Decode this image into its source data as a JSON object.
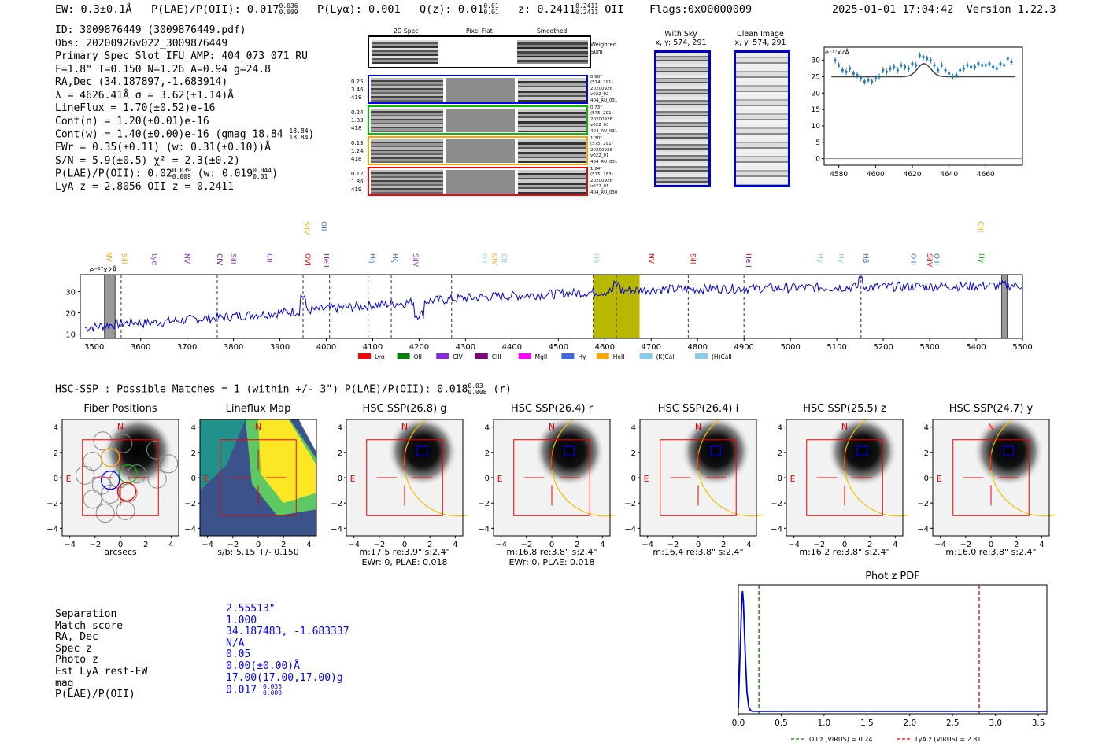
{
  "header": {
    "ew": "EW: 0.3±0.1Å",
    "plae_label": "P(LAE)/P(OII): 0.017",
    "plae_sup": "0.036",
    "plae_sub": "0.009",
    "plya": "P(Lyα): 0.001",
    "qz_label": "Q(z): 0.01",
    "qz_sup": "0.01",
    "qz_sub": "0.01",
    "z_label": "z: 0.2411",
    "z_sup": "0.2411",
    "z_sub": "0.2411",
    "z_line": "OII",
    "flags": "Flags:0x00000009",
    "timestamp": "2025-01-01 17:04:42",
    "version": "Version 1.22.3"
  },
  "info": {
    "id": "ID: 3009876449 (3009876449.pdf)",
    "obs": "Obs: 20200926v022_3009876449",
    "primary": "Primary Spec_Slot_IFU_AMP: 404_073_071_RU",
    "params": "F=1.8\"  T=0.150  N=1.26  A=0.94  g=24.8",
    "radec": "RA,Dec (34.187897,-1.683914)",
    "lambda": "λ = 4626.41Å  σ = 3.62(±1.14)Å",
    "lineflux": "LineFlux = 1.70(±0.52)e-16",
    "contn": "Cont(n) = 1.20(±0.01)e-16",
    "contw": "Cont(w) = 1.40(±0.00)e-16 (gmag 18.84",
    "contw_sup": "18.84",
    "contw_sub": "18.84",
    "ewr": "EWr = 0.35(±0.11) (w: 0.31(±0.10))Å",
    "sn": "S/N = 5.9(±0.5)  χ² = 2.3(±0.2)",
    "plae": "P(LAE)/P(OII): 0.02",
    "plae_sup": "0.039",
    "plae_sub": "0.009",
    "plae_w": "(w: 0.019",
    "plae_w_sup": "0.044",
    "plae_w_sub": "0.01",
    "lya_z": "LyA z = 2.8056   OII z = 0.2411"
  },
  "cutouts": {
    "col_2d": "2D Spec",
    "col_flat": "Pixel Flat",
    "col_smooth": "Smoothed",
    "weighted": "Weighted Sum",
    "rows": [
      {
        "left": [
          "0.25",
          "3.46",
          "418"
        ],
        "right": [
          "0.68\"",
          "(574, 291)",
          "20200926",
          "v022_02",
          "404_RU_031"
        ],
        "color": "#0000ff"
      },
      {
        "left": [
          "0.24",
          "1.83",
          "418"
        ],
        "right": [
          "0.73\"",
          "(575, 291)",
          "20200926",
          "v022_03",
          "404_RU_031"
        ],
        "color": "#00c000"
      },
      {
        "left": [
          "0.13",
          "1.24",
          "418"
        ],
        "right": [
          "1.30\"",
          "(575, 291)",
          "20200926",
          "v022_01",
          "404_RU_031"
        ],
        "color": "#ffa500"
      },
      {
        "left": [
          "0.12",
          "1.86",
          "419"
        ],
        "right": [
          "1.24\"",
          "(575, 283)",
          "20200926",
          "v022_01",
          "404_RU_030"
        ],
        "color": "#ff0000"
      }
    ],
    "with_sky": "With Sky",
    "with_sky_xy": "x, y: 574, 291",
    "clean": "Clean Image",
    "clean_xy": "x, y: 574, 291"
  },
  "zoom_chart": {
    "type": "line",
    "unit_label": "e⁻¹⁷x2Å",
    "xlim": [
      4572,
      4680
    ],
    "ylim": [
      -2,
      34
    ],
    "xticks": [
      "4580",
      "4600",
      "4620",
      "4640",
      "4660"
    ],
    "yticks": [
      "0",
      "5",
      "10",
      "15",
      "20",
      "25",
      "30"
    ],
    "x": [
      4578,
      4580,
      4582,
      4584,
      4586,
      4588,
      4590,
      4592,
      4594,
      4596,
      4598,
      4600,
      4602,
      4604,
      4606,
      4608,
      4610,
      4612,
      4614,
      4616,
      4618,
      4620,
      4622,
      4624,
      4626,
      4628,
      4630,
      4632,
      4634,
      4636,
      4638,
      4640,
      4642,
      4644,
      4646,
      4648,
      4650,
      4652,
      4654,
      4656,
      4658,
      4660,
      4662,
      4664,
      4666,
      4668,
      4670,
      4672,
      4674
    ],
    "y": [
      30,
      28.5,
      27,
      26.5,
      27.5,
      26,
      25.5,
      24.5,
      23.5,
      24,
      23.5,
      24.5,
      25,
      27,
      26.5,
      27.5,
      28,
      27,
      28.5,
      28,
      27.5,
      29,
      28.5,
      31.5,
      31,
      30.5,
      30,
      28.5,
      27,
      28.5,
      27,
      26,
      25,
      25.5,
      27,
      27.5,
      28.5,
      28,
      28,
      29,
      28.5,
      28.5,
      29,
      28,
      27.5,
      29,
      28.5,
      30.5,
      29.5
    ],
    "model_baseline": 25,
    "model_peak": 29,
    "model_center": 4626.4
  },
  "spectrum": {
    "unit_label": "e⁻¹⁷x2Å",
    "xlim": [
      3470,
      5500
    ],
    "ylim": [
      8,
      38
    ],
    "xticks": [
      "3500",
      "3600",
      "3700",
      "3800",
      "3900",
      "4000",
      "4100",
      "4200",
      "4300",
      "4400",
      "4500",
      "4600",
      "4700",
      "4800",
      "4900",
      "5000",
      "5100",
      "5200",
      "5300",
      "5400",
      "5500"
    ],
    "yticks": [
      "10",
      "20",
      "30"
    ],
    "highlight_band": [
      4575,
      4675
    ],
    "lines": [
      {
        "name": "NV",
        "x": 3522,
        "color": "#ffa500",
        "row": 2
      },
      {
        "name": "SiII",
        "x": 3555,
        "color": "#ffa500",
        "row": 1
      },
      {
        "name": "Lyα",
        "x": 3620,
        "color": "#8a2be2",
        "row": 1
      },
      {
        "name": "NV",
        "x": 3690,
        "color": "#8a2be2",
        "row": 1
      },
      {
        "name": "CIV",
        "x": 3760,
        "color": "#8b008b",
        "row": 1
      },
      {
        "name": "SiII",
        "x": 3790,
        "color": "#8a2be2",
        "row": 1
      },
      {
        "name": "CII",
        "x": 3868,
        "color": "#8a2be2",
        "row": 1
      },
      {
        "name": "OVI",
        "x": 3950,
        "color": "#ff0000",
        "row": 1
      },
      {
        "name": "SiIV",
        "x": 3948,
        "color": "#ffa500",
        "row": 3
      },
      {
        "name": "OII",
        "x": 3985,
        "color": "#4169e1",
        "row": 3
      },
      {
        "name": "HeII",
        "x": 3990,
        "color": "#8b008b",
        "row": 1
      },
      {
        "name": "Hη",
        "x": 4090,
        "color": "#4169e1",
        "row": 1
      },
      {
        "name": "Hζ",
        "x": 4138,
        "color": "#4169e1",
        "row": 1
      },
      {
        "name": "SiIV",
        "x": 4182,
        "color": "#8a2be2",
        "row": 1
      },
      {
        "name": "OII",
        "x": 4331,
        "color": "#87ceeb",
        "row": 1
      },
      {
        "name": "CIV",
        "x": 4353,
        "color": "#ffa500",
        "row": 1
      },
      {
        "name": "CII",
        "x": 4373,
        "color": "#87ceeb",
        "row": 1
      },
      {
        "name": "Hδ",
        "x": 4572,
        "color": "#87ceeb",
        "row": 1
      },
      {
        "name": "NV",
        "x": 4690,
        "color": "#ff0000",
        "row": 1
      },
      {
        "name": "SiII",
        "x": 4780,
        "color": "#ff0000",
        "row": 1
      },
      {
        "name": "HeII",
        "x": 4900,
        "color": "#8b008b",
        "row": 1
      },
      {
        "name": "Hγ",
        "x": 5055,
        "color": "#87ceeb",
        "row": 1
      },
      {
        "name": "Hγ",
        "x": 5100,
        "color": "#87ceeb",
        "row": 1
      },
      {
        "name": "Hβ",
        "x": 5152,
        "color": "#4169e1",
        "row": 1
      },
      {
        "name": "OIII",
        "x": 5255,
        "color": "#4169e1",
        "row": 1
      },
      {
        "name": "SiIV",
        "x": 5290,
        "color": "#ff0000",
        "row": 1
      },
      {
        "name": "OIII",
        "x": 5305,
        "color": "#4169e1",
        "row": 1
      },
      {
        "name": "Hγ",
        "x": 5402,
        "color": "#00c000",
        "row": 1
      },
      {
        "name": "CIII",
        "x": 5400,
        "color": "#ffa500",
        "row": 3
      }
    ],
    "dashed_lines": [
      3558,
      3765,
      3950,
      4007,
      4090,
      4140,
      4270,
      4575,
      4625,
      4780,
      4900,
      5152
    ],
    "legend": [
      {
        "label": "Lyα",
        "color": "#ff0000"
      },
      {
        "label": "OII",
        "color": "#008000"
      },
      {
        "label": "CIV",
        "color": "#8a2be2"
      },
      {
        "label": "CIII",
        "color": "#800080"
      },
      {
        "label": "MgII",
        "color": "#ff00ff"
      },
      {
        "label": "Hγ",
        "color": "#4169e1"
      },
      {
        "label": "HeII",
        "color": "#ffa500"
      },
      {
        "label": "(K)CaII",
        "color": "#87ceeb"
      },
      {
        "label": "(H)CaII",
        "color": "#87ceeb"
      }
    ]
  },
  "hsc": {
    "summary": "HSC-SSP : Possible Matches = 1 (within +/- 3\")  P(LAE)/P(OII): 0.018",
    "summary_sup": "0.03",
    "summary_sub": "0.008",
    "summary_band": "(r)",
    "panels": [
      {
        "title": "Fiber Positions",
        "caption1": "arcsecs",
        "caption2": ""
      },
      {
        "title": "Lineflux Map",
        "caption1": "s/b: 5.15 +/- 0.150",
        "caption2": ""
      },
      {
        "title": "HSC SSP(26.8) g",
        "caption1": "m:17.5  re:3.9\"  s:2.4\"",
        "caption2": "EWr: 0, PLAE: 0.018"
      },
      {
        "title": "HSC SSP(26.4) r",
        "caption1": "m:16.8  re:3.8\"  s:2.4\"",
        "caption2": "EWr: 0, PLAE: 0.018"
      },
      {
        "title": "HSC SSP(26.4) i",
        "caption1": "m:16.4  re:3.8\"  s:2.4\"",
        "caption2": ""
      },
      {
        "title": "HSC SSP(25.5) z",
        "caption1": "m:16.2  re:3.8\"  s:2.4\"",
        "caption2": ""
      },
      {
        "title": "HSC SSP(24.7) y",
        "caption1": "m:16.0  re:3.8\"  s:2.4\"",
        "caption2": ""
      }
    ],
    "ticks": [
      "−4",
      "−2",
      "0",
      "2",
      "4"
    ],
    "north": "N",
    "east": "E"
  },
  "match": {
    "labels": [
      "Separation",
      "Match score",
      "RA, Dec",
      "Spec z",
      "Photo z",
      "Est LyA rest-EW",
      "mag",
      "P(LAE)/P(OII)"
    ],
    "values": [
      "2.55513\"",
      "1.000",
      "34.187483, -1.683337",
      "N/A",
      "0.05",
      "0.00(±0.00)Å",
      "17.00(17.00,17.00)g",
      "0.017"
    ],
    "plae_sup": "0.035",
    "plae_sub": "0.009"
  },
  "photz": {
    "title": "Phot z PDF",
    "xlim": [
      0,
      3.6
    ],
    "xticks": [
      "0.0",
      "0.5",
      "1.0",
      "1.5",
      "2.0",
      "2.5",
      "3.0",
      "3.5"
    ],
    "oii_z": 0.24,
    "lya_z": 2.81,
    "legend_oii": "OII z (VIRUS) = 0.24",
    "legend_lya": "LyA z (VIRUS) = 2.81",
    "pdf_x": [
      0.0,
      0.02,
      0.04,
      0.05,
      0.06,
      0.08,
      0.1,
      0.12,
      0.14,
      0.16,
      0.2,
      0.3,
      3.6
    ],
    "pdf_y": [
      0.05,
      0.5,
      0.93,
      1.0,
      0.9,
      0.5,
      0.18,
      0.06,
      0.03,
      0.02,
      0.02,
      0.02,
      0.02
    ]
  }
}
